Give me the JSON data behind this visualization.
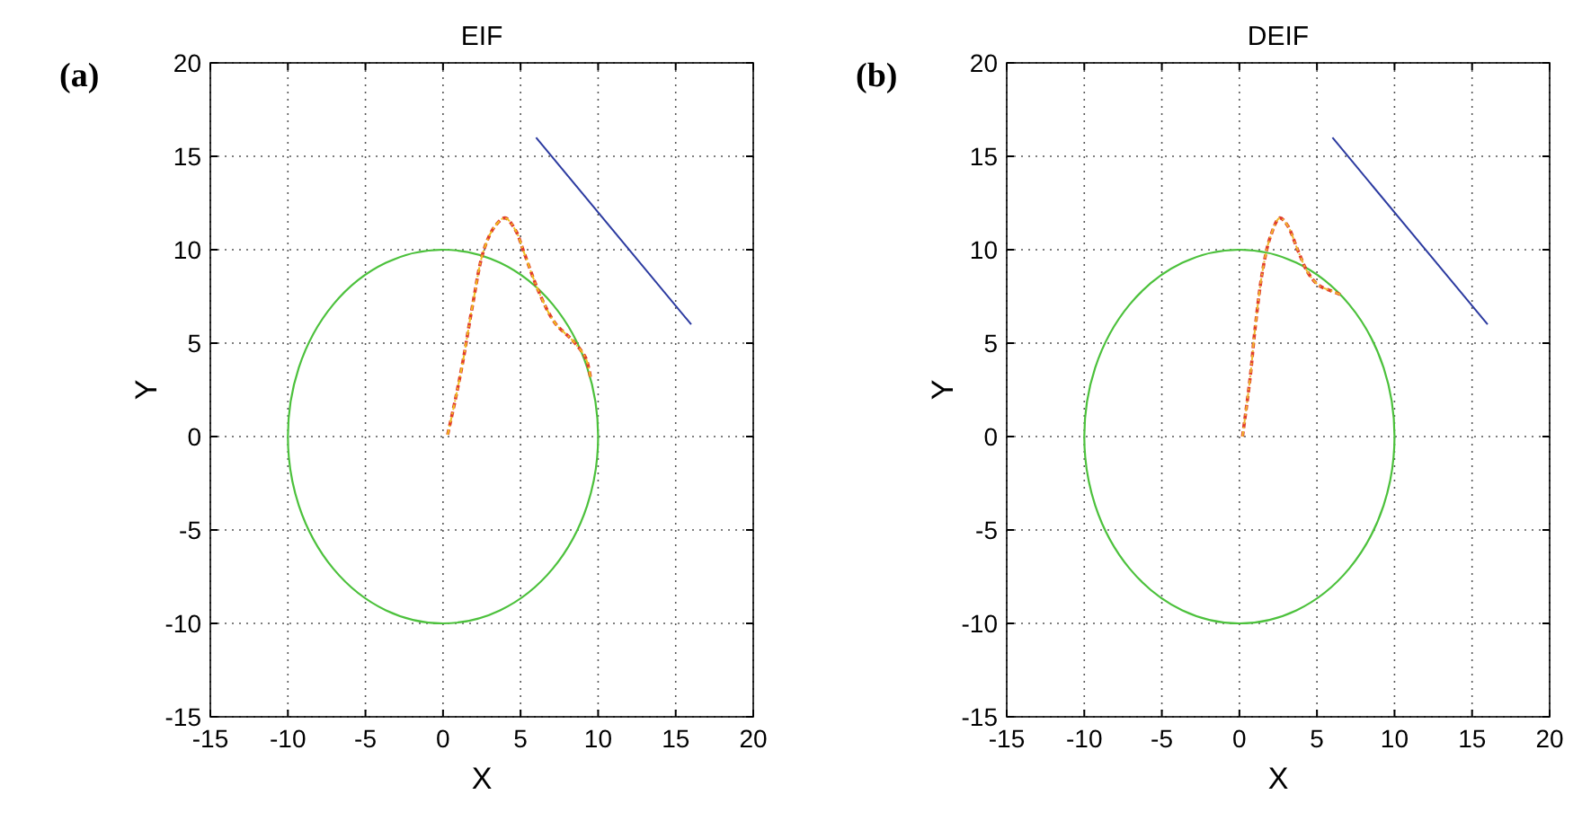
{
  "chart_data": [
    {
      "type": "line",
      "title": "EIF",
      "xlabel": "X",
      "ylabel": "Y",
      "annotations": [
        "(a)"
      ],
      "xlim": [
        -15,
        20
      ],
      "ylim": [
        -15,
        20
      ],
      "xticks": [
        -15,
        -10,
        -5,
        0,
        5,
        10,
        15,
        20
      ],
      "yticks": [
        -15,
        -10,
        -5,
        0,
        5,
        10,
        15,
        20
      ],
      "grid": true,
      "series": [
        {
          "color": "#e03c2c",
          "line_style": "dashed",
          "x": [
            0.3,
            0.8,
            1.3,
            1.9,
            2.6,
            3.3,
            4,
            4.7,
            5.2,
            6.2,
            7.2,
            8.4,
            9.2,
            9.5
          ],
          "values": [
            0.1,
            2,
            4.1,
            7,
            9.9,
            11.2,
            11.7,
            11,
            9.9,
            7.7,
            6.1,
            5.1,
            4.2,
            3.2
          ]
        },
        {
          "color": "#f0c020",
          "line_style": "dashdot",
          "x": [
            0.3,
            0.8,
            1.3,
            1.9,
            2.6,
            3.3,
            4,
            4.7,
            5.2,
            6.2,
            7.2,
            8.4,
            9.2,
            9.5
          ],
          "values": [
            0.1,
            2,
            4.1,
            7,
            9.9,
            11.2,
            11.7,
            11,
            9.9,
            7.7,
            6.1,
            5.1,
            4.2,
            3.2
          ]
        },
        {
          "color": "#2b3aa0",
          "line_style": "solid",
          "x": [
            6,
            16
          ],
          "values": [
            16,
            6
          ]
        }
      ]
    },
    {
      "type": "line",
      "title": "DEIF",
      "xlabel": "X",
      "ylabel": "Y",
      "annotations": [
        "(b)"
      ],
      "xlim": [
        -15,
        20
      ],
      "ylim": [
        -15,
        20
      ],
      "xticks": [
        -15,
        -10,
        -5,
        0,
        5,
        10,
        15,
        20
      ],
      "yticks": [
        -15,
        -10,
        -5,
        0,
        5,
        10,
        15,
        20
      ],
      "grid": true,
      "series": [
        {
          "color": "#e03c2c",
          "line_style": "dashed",
          "x": [
            0.2,
            0.7,
            1,
            1.5,
            2,
            2.6,
            3.1,
            3.8,
            4.4,
            5.1,
            5.9,
            6.5
          ],
          "values": [
            0,
            3.2,
            5.7,
            8.9,
            10.7,
            11.7,
            11.3,
            9.9,
            8.8,
            8.1,
            7.8,
            7.6
          ]
        },
        {
          "color": "#f0b830",
          "line_style": "dashdot",
          "x": [
            0.2,
            0.7,
            1,
            1.5,
            2,
            2.6,
            3.1,
            3.8,
            4.4,
            5.1,
            5.9,
            6.5
          ],
          "values": [
            0,
            3.2,
            5.7,
            8.9,
            10.7,
            11.7,
            11.3,
            9.9,
            8.8,
            8.1,
            7.8,
            7.6
          ]
        },
        {
          "color": "#2b3aa0",
          "line_style": "solid",
          "x": [
            6,
            16
          ],
          "values": [
            16,
            6
          ]
        }
      ]
    }
  ]
}
